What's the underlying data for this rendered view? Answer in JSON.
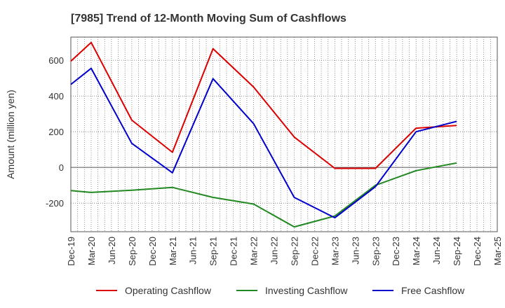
{
  "chart_data": {
    "type": "line",
    "title": "[7985]  Trend of 12-Month Moving Sum of Cashflows",
    "xlabel": "",
    "ylabel": "Amount (million yen)",
    "ylim": [
      -360,
      730
    ],
    "yticks": [
      -200,
      0,
      200,
      400,
      600
    ],
    "grid": true,
    "legend_position": "bottom",
    "x_tick_labels": [
      "Dec-19",
      "Mar-20",
      "Jun-20",
      "Sep-20",
      "Dec-20",
      "Mar-21",
      "Jun-21",
      "Sep-21",
      "Dec-21",
      "Mar-22",
      "Jun-22",
      "Sep-22",
      "Dec-22",
      "Mar-23",
      "Jun-23",
      "Sep-23",
      "Dec-23",
      "Mar-24",
      "Jun-24",
      "Sep-24",
      "Dec-24",
      "Mar-25"
    ],
    "series": [
      {
        "name": "Operating Cashflow",
        "color": "#dd0000",
        "x": [
          "Dec-19",
          "Mar-20",
          "Sep-20",
          "Mar-21",
          "Sep-21",
          "Mar-22",
          "Sep-22",
          "Mar-23",
          "Sep-23",
          "Mar-24",
          "Sep-24"
        ],
        "values": [
          595,
          700,
          265,
          85,
          665,
          450,
          170,
          -5,
          -5,
          220,
          235
        ]
      },
      {
        "name": "Investing Cashflow",
        "color": "#228822",
        "x": [
          "Dec-19",
          "Mar-20",
          "Sep-20",
          "Mar-21",
          "Sep-21",
          "Mar-22",
          "Sep-22",
          "Mar-23",
          "Sep-23",
          "Mar-24",
          "Sep-24"
        ],
        "values": [
          -130,
          -140,
          -128,
          -112,
          -168,
          -205,
          -333,
          -272,
          -100,
          -18,
          25
        ]
      },
      {
        "name": "Free Cashflow",
        "color": "#0000cc",
        "x": [
          "Dec-19",
          "Mar-20",
          "Sep-20",
          "Mar-21",
          "Sep-21",
          "Mar-22",
          "Sep-22",
          "Mar-23",
          "Sep-23",
          "Mar-24",
          "Sep-24"
        ],
        "values": [
          465,
          555,
          135,
          -30,
          497,
          245,
          -168,
          -282,
          -108,
          200,
          258
        ]
      }
    ]
  }
}
